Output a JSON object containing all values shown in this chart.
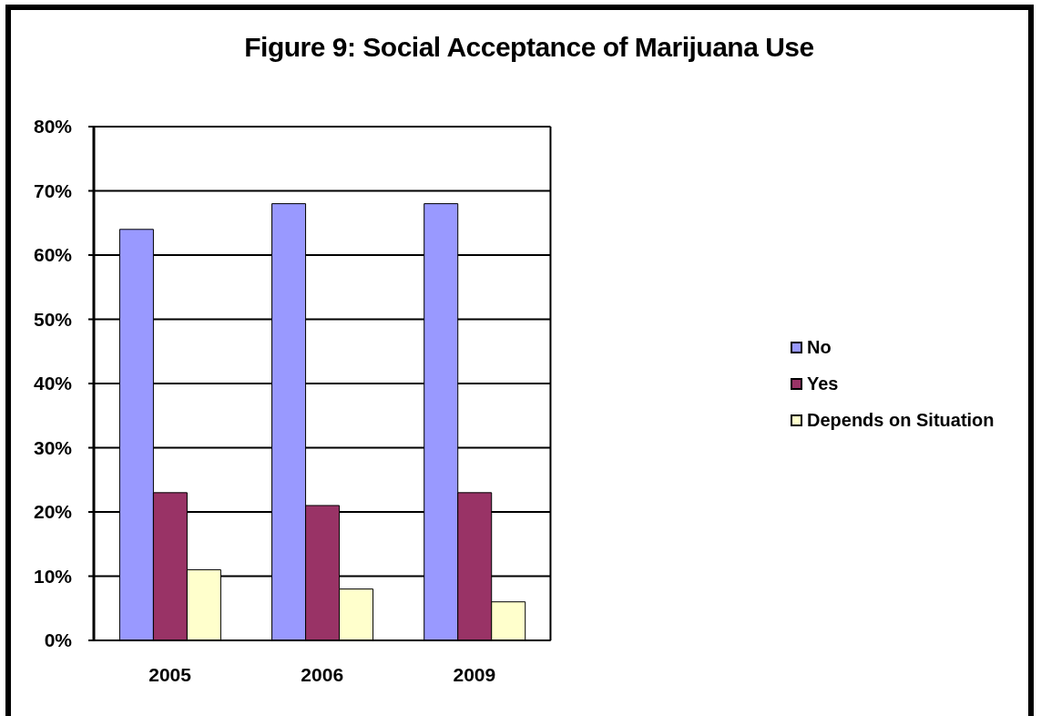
{
  "chart_data": {
    "type": "bar",
    "title": "Figure 9: Social Acceptance of Marijuana Use",
    "categories": [
      "2005",
      "2006",
      "2009"
    ],
    "series": [
      {
        "name": "No",
        "color": "#9999ff",
        "values": [
          64,
          68,
          68
        ]
      },
      {
        "name": "Yes",
        "color": "#993366",
        "values": [
          23,
          21,
          23
        ]
      },
      {
        "name": "Depends on Situation",
        "color": "#ffffcc",
        "values": [
          11,
          8,
          6
        ]
      }
    ],
    "ylim": [
      0,
      80
    ],
    "yticks": [
      {
        "value": 0,
        "label": "0%"
      },
      {
        "value": 10,
        "label": "10%"
      },
      {
        "value": 20,
        "label": "20%"
      },
      {
        "value": 30,
        "label": "30%"
      },
      {
        "value": 40,
        "label": "40%"
      },
      {
        "value": 50,
        "label": "50%"
      },
      {
        "value": 60,
        "label": "60%"
      },
      {
        "value": 70,
        "label": "70%"
      },
      {
        "value": 80,
        "label": "80%"
      }
    ],
    "grid": "y",
    "legend": "right"
  }
}
